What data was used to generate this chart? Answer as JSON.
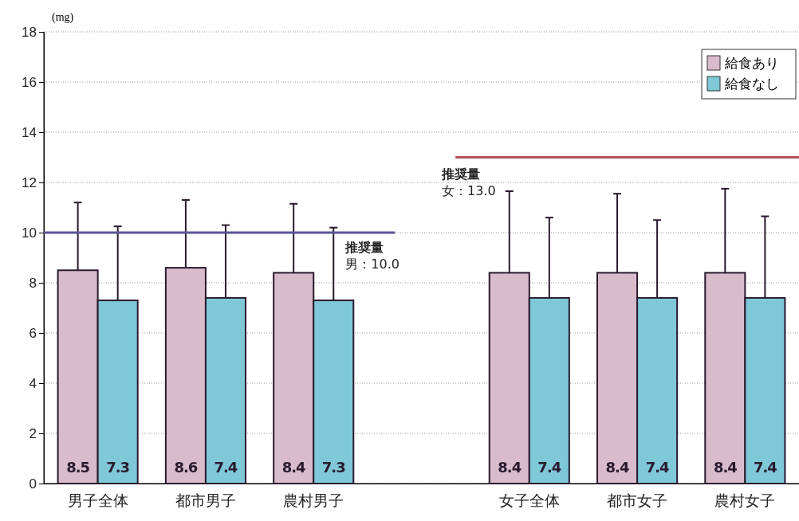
{
  "chart_data": {
    "type": "bar",
    "ylabel": "(mg)",
    "categories": [
      "男子全体",
      "都市男子",
      "農村男子",
      null,
      "女子全体",
      "都市女子",
      "農村女子"
    ],
    "series": [
      {
        "name": "給食あり",
        "color": "#d8bccb",
        "values": [
          8.5,
          8.6,
          8.4,
          null,
          8.4,
          8.4,
          8.4
        ],
        "errors": [
          [
            8.5,
            11.2
          ],
          [
            8.6,
            11.3
          ],
          [
            8.4,
            11.15
          ],
          null,
          [
            8.4,
            11.65
          ],
          [
            8.4,
            11.55
          ],
          [
            8.4,
            11.75
          ]
        ]
      },
      {
        "name": "給食なし",
        "color": "#7ec8d8",
        "values": [
          7.3,
          7.4,
          7.3,
          null,
          7.4,
          7.4,
          7.4
        ],
        "errors": [
          [
            7.3,
            10.25
          ],
          [
            7.4,
            10.3
          ],
          [
            7.3,
            10.2
          ],
          null,
          [
            7.4,
            10.6
          ],
          [
            7.4,
            10.5
          ],
          [
            7.4,
            10.65
          ]
        ]
      }
    ],
    "ylim": [
      0,
      18
    ],
    "yticks": [
      0,
      2,
      4,
      6,
      8,
      10,
      12,
      14,
      16,
      18
    ],
    "grid": "y",
    "legend": "top right",
    "data_labels": true,
    "annotations": [
      "推奨量",
      "推奨量"
    ],
    "ref_lines": [
      {
        "axis": "y",
        "value": 10,
        "label": "男：10.0",
        "color": "#5b5496"
      },
      {
        "axis": "y",
        "value": 13,
        "label": "女：13.0",
        "color": "#b5505f"
      }
    ]
  }
}
